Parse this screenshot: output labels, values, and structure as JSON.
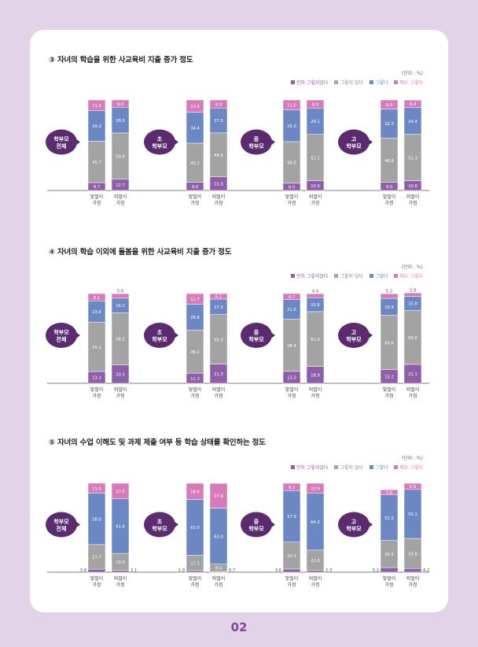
{
  "page_number": "02",
  "colors": {
    "strongly_disagree": "#8e5ea9",
    "disagree": "#a3a3a3",
    "agree": "#6c88c4",
    "strongly_agree": "#d77ab8",
    "bubble": "#5b2b70"
  },
  "legend": {
    "unit": "(단위 : %)",
    "items": [
      "전혀 그렇지않다",
      "그렇지 않다",
      "그렇다",
      "매우 그렇다"
    ]
  },
  "chart_data": [
    {
      "type": "bar",
      "title": "③ 자녀의 학습을 위한 사교육비 지출 증가 정도",
      "stacked": true,
      "ylim": [
        0,
        100
      ],
      "series_names": [
        "전혀 그렇지않다",
        "그렇지 않다",
        "그렇다",
        "매우 그렇다"
      ],
      "groups": [
        {
          "label": "학부모\n전체",
          "bars": [
            {
              "label": "맞벌이\n가정",
              "values": [
                8.7,
                45.7,
                34.0,
                11.6
              ]
            },
            {
              "label": "외벌이\n가정",
              "values": [
                12.7,
                50.8,
                28.5,
                8.0
              ]
            }
          ]
        },
        {
          "label": "초\n학부모",
          "bars": [
            {
              "label": "맞벌이\n가정",
              "values": [
                9.0,
                43.2,
                34.4,
                13.4
              ]
            },
            {
              "label": "외벌이\n가정",
              "values": [
                15.0,
                48.6,
                27.5,
                8.9
              ]
            }
          ]
        },
        {
          "label": "중\n학부모",
          "bars": [
            {
              "label": "맞벌이\n가정",
              "values": [
                8.0,
                46.0,
                35.0,
                11.0
              ]
            },
            {
              "label": "외벌이\n가정",
              "values": [
                10.9,
                51.1,
                29.1,
                8.9
              ]
            }
          ]
        },
        {
          "label": "고\n학부모",
          "bars": [
            {
              "label": "맞벌이\n가정",
              "values": [
                9.0,
                48.8,
                32.3,
                9.9
              ]
            },
            {
              "label": "외벌이\n가정",
              "values": [
                10.8,
                51.3,
                29.4,
                8.4
              ]
            }
          ]
        }
      ]
    },
    {
      "type": "bar",
      "title": "④ 자녀의 학습 이외에 돌봄을 위한 사교육비 지출 증가 정도",
      "stacked": true,
      "ylim": [
        0,
        100
      ],
      "series_names": [
        "전혀 그렇지않다",
        "그렇지 않다",
        "그렇다",
        "매우 그렇다"
      ],
      "groups": [
        {
          "label": "학부모\n전체",
          "bars": [
            {
              "label": "맞벌이\n가정",
              "values": [
                13.1,
                55.2,
                23.6,
                8.1
              ]
            },
            {
              "label": "외벌이\n가정",
              "values": [
                20.5,
                58.2,
                16.2,
                5.0
              ]
            }
          ]
        },
        {
          "label": "초\n학부모",
          "bars": [
            {
              "label": "맞벌이\n가정",
              "values": [
                11.3,
                48.2,
                28.8,
                11.7
              ]
            },
            {
              "label": "외벌이\n가정",
              "values": [
                21.3,
                55.3,
                17.3,
                6.1
              ]
            }
          ]
        },
        {
          "label": "중\n학부모",
          "bars": [
            {
              "label": "맞벌이\n가정",
              "values": [
                13.3,
                58.4,
                21.6,
                6.7
              ]
            },
            {
              "label": "외벌이\n가정",
              "values": [
                18.9,
                61.0,
                15.6,
                4.4
              ]
            }
          ]
        },
        {
          "label": "고\n학부모",
          "bars": [
            {
              "label": "맞벌이\n가정",
              "values": [
                15.2,
                60.6,
                18.9,
                5.2
              ]
            },
            {
              "label": "외벌이\n가정",
              "values": [
                21.1,
                60.0,
                15.8,
                3.9
              ]
            }
          ]
        }
      ]
    },
    {
      "type": "bar",
      "title": "⑤ 자녀의 수업 이해도 및 과제 제출 여부 등 학습 상태를 확인하는 정도",
      "stacked": true,
      "ylim": [
        0,
        100
      ],
      "series_names": [
        "전혀 그렇지않다",
        "그렇지 않다",
        "그렇다",
        "매우 그렇다"
      ],
      "groups": [
        {
          "label": "학부모\n전체",
          "bars": [
            {
              "label": "맞벌이\n가정",
              "values": [
                3.4,
                27.7,
                58.0,
                11.0
              ]
            },
            {
              "label": "외벌이\n가정",
              "values": [
                2.1,
                19.0,
                61.4,
                17.5
              ]
            }
          ]
        },
        {
          "label": "초\n학부모",
          "bars": [
            {
              "label": "맞벌이\n가정",
              "values": [
                1.9,
                17.1,
                63.0,
                18.0
              ]
            },
            {
              "label": "외벌이\n가정",
              "values": [
                0.7,
                8.4,
                63.0,
                27.8
              ]
            }
          ]
        },
        {
          "label": "중\n학부모",
          "bars": [
            {
              "label": "맞벌이\n가정",
              "values": [
                3.6,
                30.3,
                57.9,
                8.2
              ]
            },
            {
              "label": "외벌이\n가정",
              "values": [
                2.3,
                22.6,
                64.2,
                10.9
              ]
            }
          ]
        },
        {
          "label": "고\n학부모",
          "bars": [
            {
              "label": "맞벌이\n가정",
              "values": [
                5.2,
                30.5,
                51.3,
                5.8
              ]
            },
            {
              "label": "외벌이\n가정",
              "values": [
                4.2,
                33.8,
                55.1,
                6.9
              ]
            }
          ]
        }
      ]
    }
  ]
}
